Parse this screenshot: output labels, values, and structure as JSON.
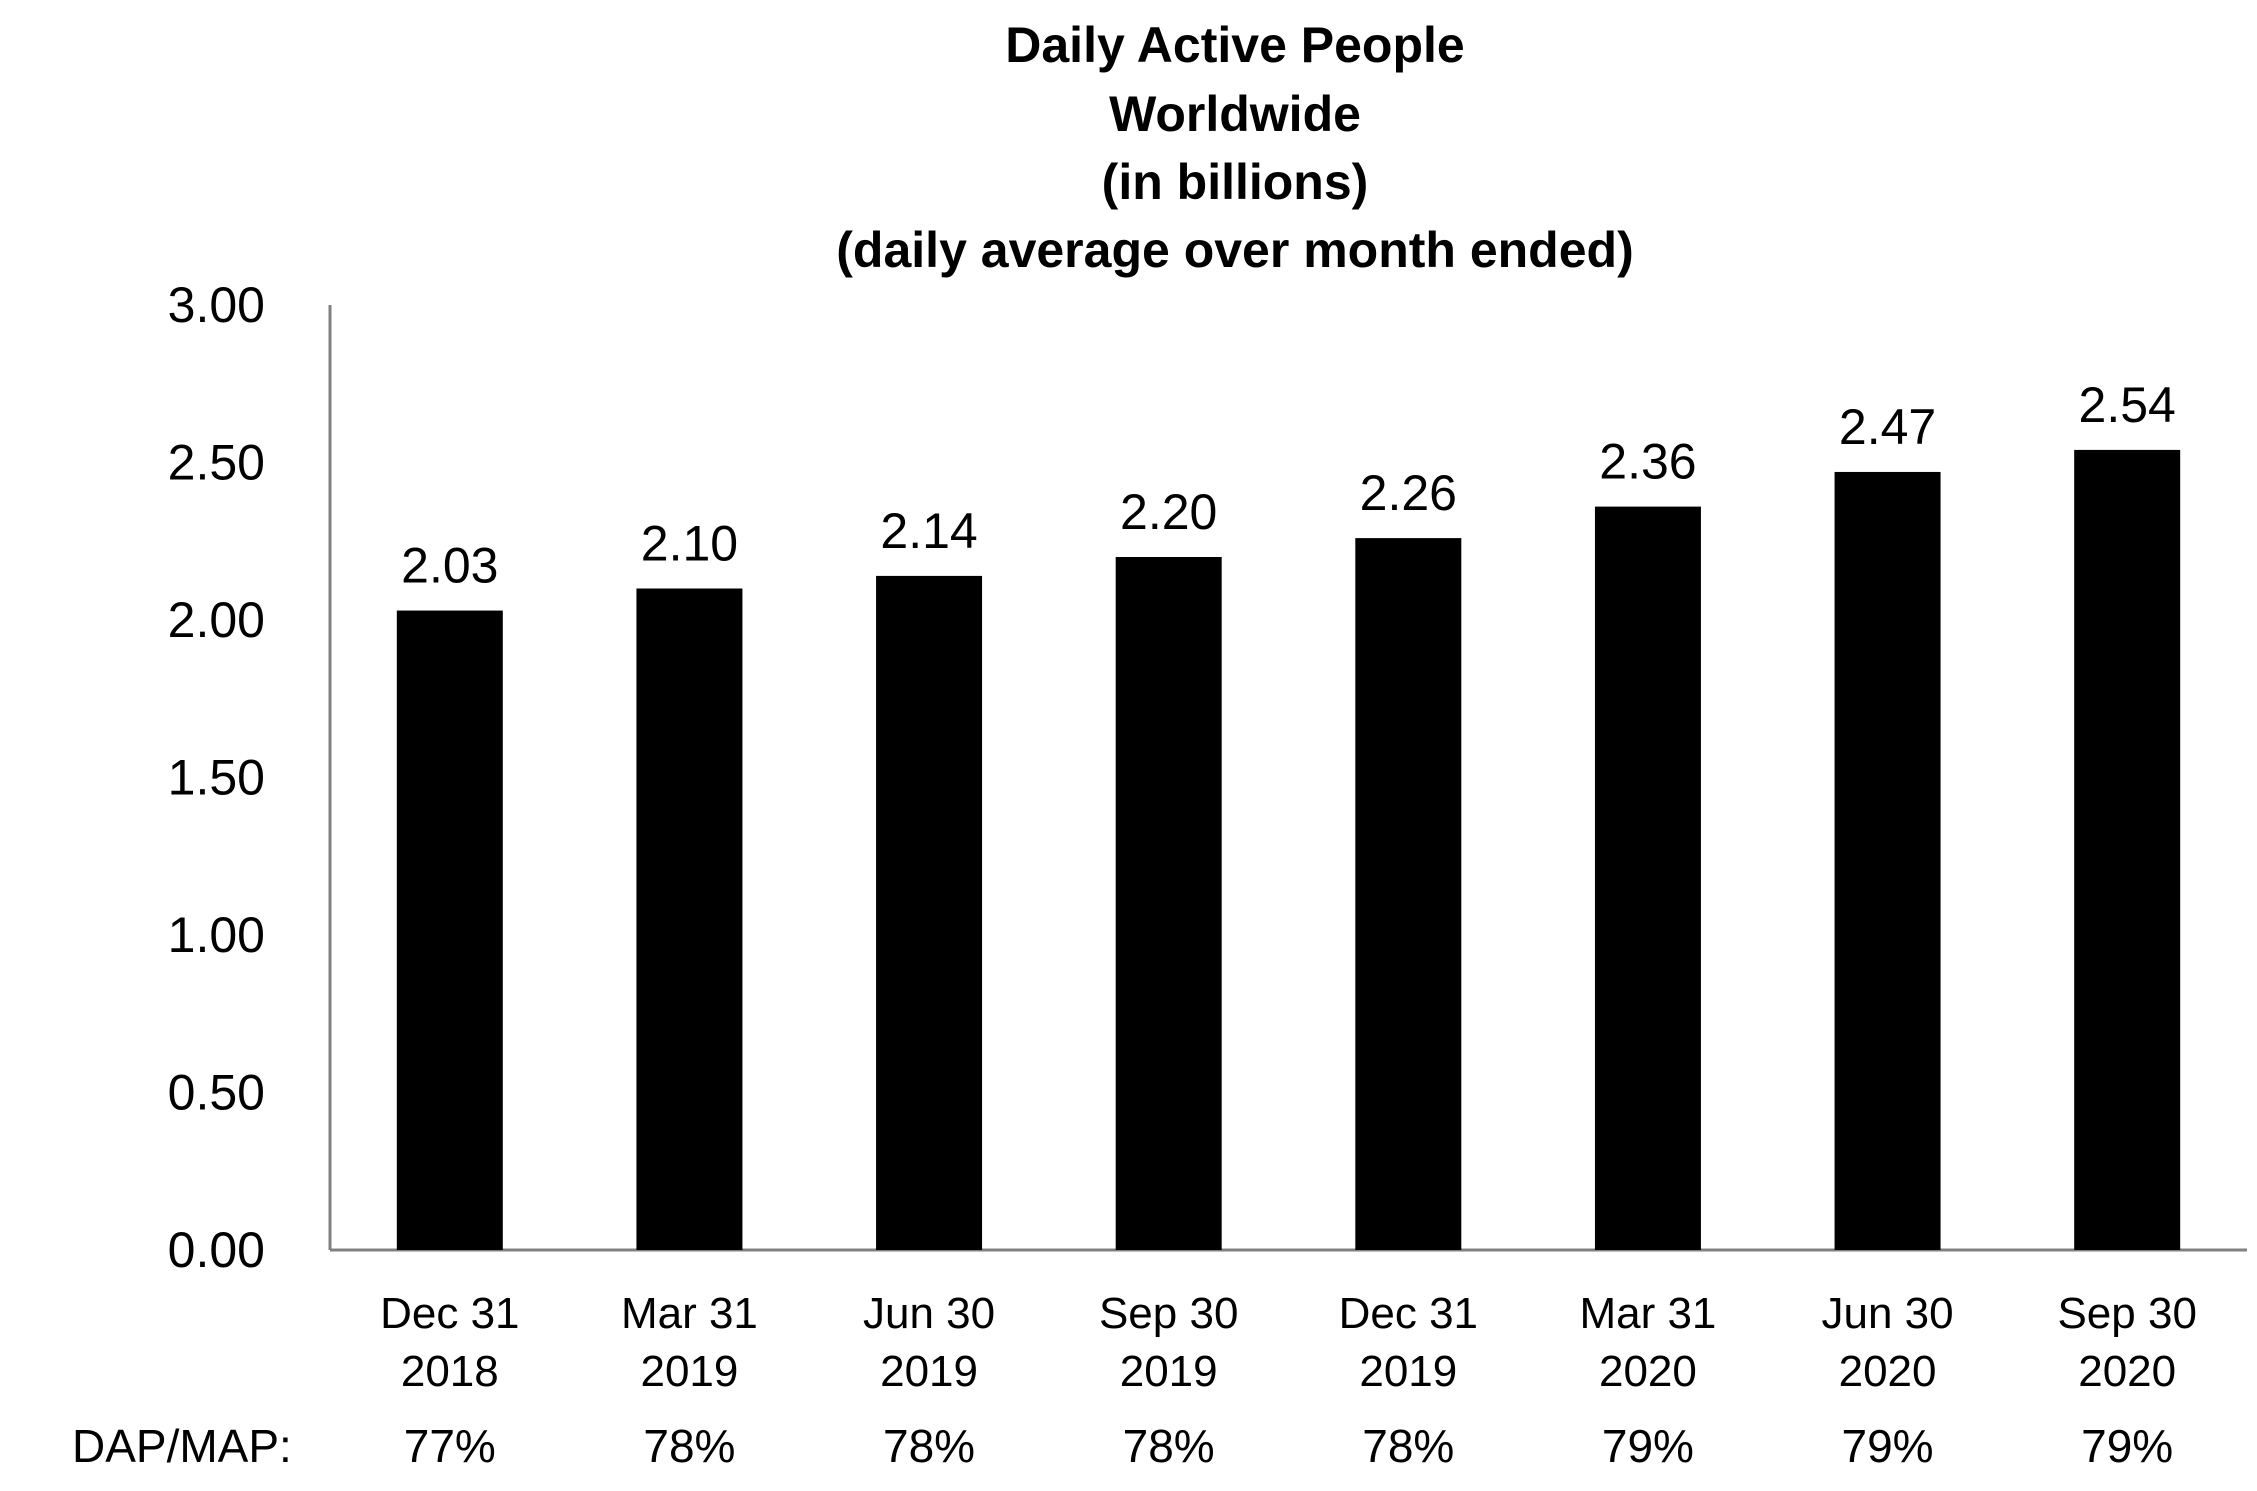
{
  "chart_data": {
    "type": "bar",
    "title": "Daily Active People",
    "title_lines": [
      "Daily Active People",
      "Worldwide",
      "(in billions)",
      "(daily average over month ended)"
    ],
    "categories": [
      [
        "Dec 31",
        "2018"
      ],
      [
        "Mar 31",
        "2019"
      ],
      [
        "Jun 30",
        "2019"
      ],
      [
        "Sep 30",
        "2019"
      ],
      [
        "Dec 31",
        "2019"
      ],
      [
        "Mar 31",
        "2020"
      ],
      [
        "Jun 30",
        "2020"
      ],
      [
        "Sep 30",
        "2020"
      ]
    ],
    "values": [
      2.03,
      2.1,
      2.14,
      2.2,
      2.26,
      2.36,
      2.47,
      2.54
    ],
    "value_labels": [
      "2.03",
      "2.10",
      "2.14",
      "2.20",
      "2.26",
      "2.36",
      "2.47",
      "2.54"
    ],
    "xlabel": "",
    "ylabel": "",
    "ylim": [
      0,
      3
    ],
    "yticks": [
      "0.00",
      "0.50",
      "1.00",
      "1.50",
      "2.00",
      "2.50",
      "3.00"
    ],
    "ytick_values": [
      0,
      0.5,
      1.0,
      1.5,
      2.0,
      2.5,
      3.0
    ],
    "grid": false,
    "legend": "none",
    "bar_color": "#000000",
    "axis_color": "#808080",
    "dap_map": {
      "label": "DAP/MAP:",
      "values": [
        "77%",
        "78%",
        "78%",
        "78%",
        "78%",
        "79%",
        "79%",
        "79%"
      ]
    }
  }
}
